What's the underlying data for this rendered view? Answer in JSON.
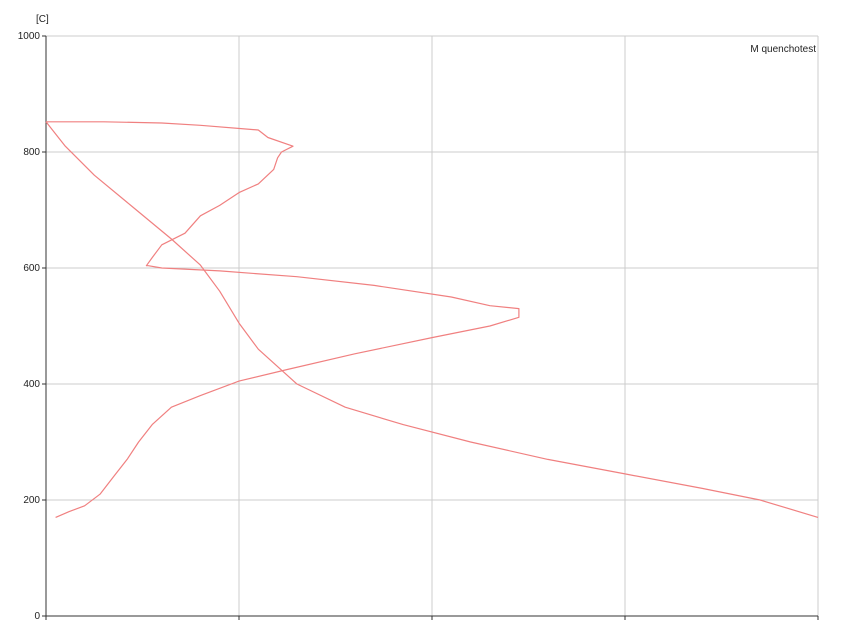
{
  "chart_data": {
    "type": "line",
    "title": "",
    "xlabel": "",
    "ylabel": "[C]",
    "ylim": [
      0,
      1000
    ],
    "xlim": [
      0,
      4
    ],
    "y_ticks": [
      "0",
      "200",
      "400",
      "600",
      "800",
      "1000"
    ],
    "x_ticks": [
      0,
      1,
      2,
      3,
      4
    ],
    "grid": true,
    "legend": "top-right",
    "colors": {
      "series": "#f08080",
      "grid": "#cccccc",
      "axis": "#333333"
    },
    "series": [
      {
        "name": "M quenchotest",
        "x": [
          0.0,
          0.3,
          0.6,
          0.8,
          1.1,
          1.15,
          1.28,
          1.22,
          1.2,
          1.18,
          1.1,
          1.0,
          0.9,
          0.8,
          0.72,
          0.6,
          0.55,
          0.52,
          0.53,
          0.6,
          0.9,
          1.3,
          1.7,
          2.1,
          2.3,
          2.45,
          2.45,
          2.3,
          2.0,
          1.6,
          1.25,
          1.0,
          0.8,
          0.65,
          0.55,
          0.48,
          0.42,
          0.35,
          0.28,
          0.2,
          0.12,
          0.05
        ],
        "y": [
          852,
          852,
          850,
          846,
          838,
          825,
          810,
          800,
          790,
          770,
          745,
          730,
          708,
          690,
          660,
          640,
          618,
          604,
          604,
          600,
          595,
          585,
          570,
          550,
          535,
          530,
          515,
          500,
          480,
          452,
          425,
          405,
          380,
          360,
          330,
          300,
          270,
          240,
          210,
          190,
          180,
          170
        ]
      },
      {
        "name": "",
        "x": [
          0.0,
          0.1,
          0.25,
          0.45,
          0.65,
          0.8,
          0.9,
          1.0,
          1.1,
          1.3,
          1.55,
          1.85,
          2.2,
          2.6,
          3.0,
          3.4,
          3.7,
          4.0
        ],
        "y": [
          852,
          810,
          760,
          705,
          650,
          605,
          560,
          505,
          460,
          400,
          360,
          330,
          300,
          270,
          245,
          220,
          200,
          170
        ]
      }
    ]
  }
}
